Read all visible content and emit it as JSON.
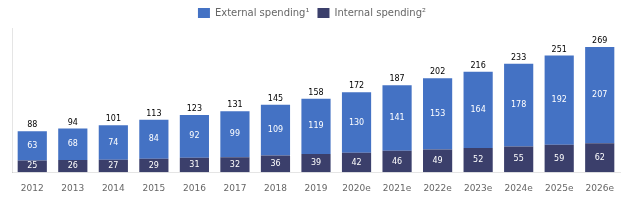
{
  "chart_data": {
    "type": "bar",
    "categories": [
      "2012",
      "2013",
      "2014",
      "2015",
      "2016",
      "2017",
      "2018",
      "2019",
      "2020e",
      "2021e",
      "2022e",
      "2023e",
      "2024e",
      "2025e",
      "2026e"
    ],
    "series": [
      {
        "name": "Internal spending²",
        "color": "#3B3F6B",
        "values": [
          25,
          26,
          27,
          29,
          31,
          32,
          36,
          39,
          42,
          46,
          49,
          52,
          55,
          59,
          62
        ]
      },
      {
        "name": "External spending¹",
        "color": "#4472C4",
        "values": [
          63,
          68,
          74,
          84,
          92,
          99,
          109,
          119,
          130,
          141,
          153,
          164,
          178,
          192,
          207
        ]
      }
    ],
    "totals": [
      88,
      94,
      101,
      113,
      123,
      131,
      145,
      158,
      172,
      187,
      202,
      216,
      233,
      251,
      269
    ],
    "stacked": true,
    "data_labels": true,
    "ylim": [
      0,
      310
    ],
    "grid": false,
    "legend": "top",
    "tick_labels": "x"
  }
}
